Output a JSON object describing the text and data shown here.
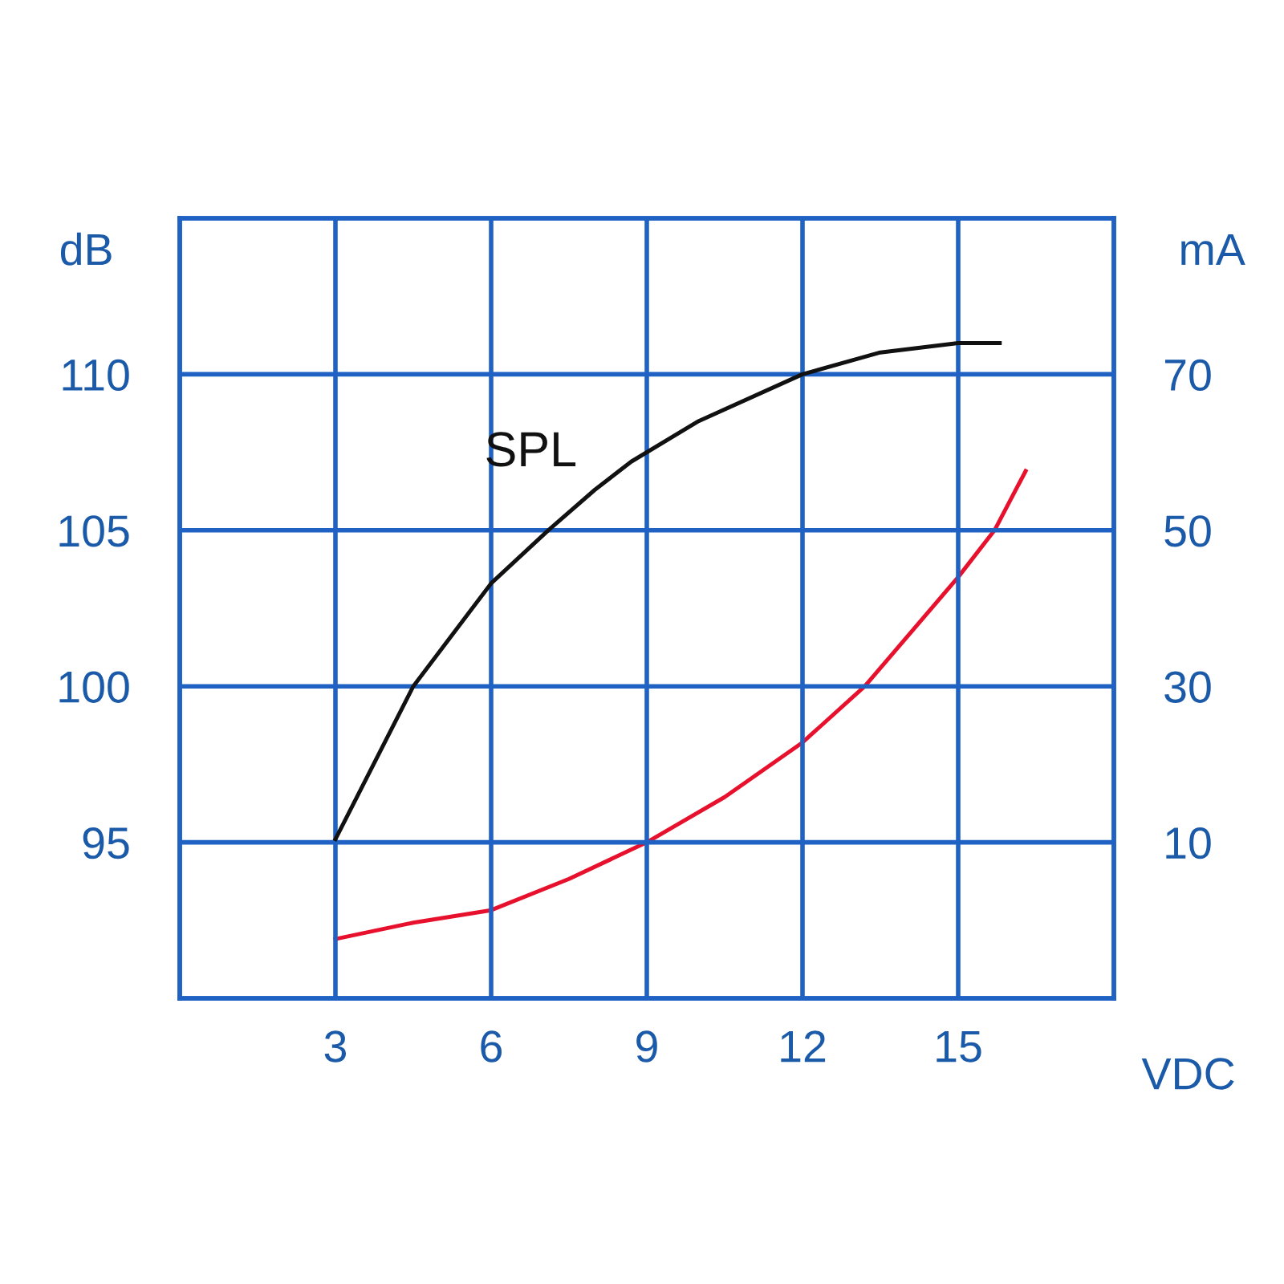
{
  "chart_data": {
    "type": "line",
    "xlabel": "VDC",
    "ylabel": "dB",
    "y2label": "mA",
    "xlim": [
      0,
      18
    ],
    "xticks": [
      3,
      6,
      9,
      12,
      15
    ],
    "ylim": [
      90,
      115
    ],
    "yticks": [
      95,
      100,
      105,
      110
    ],
    "y2lim": [
      -10,
      90
    ],
    "y2ticks": [
      10,
      30,
      50,
      70
    ],
    "grid": true,
    "marker": "none",
    "line_style": "solid",
    "series": [
      {
        "name": "SPL",
        "color": "#111111",
        "x": [
          3,
          4.5,
          6,
          7.1,
          8.0,
          8.7,
          10,
          12,
          13.5,
          15,
          15.8
        ],
        "values": [
          95.1,
          100,
          103.3,
          105,
          106.3,
          107.2,
          108.5,
          110,
          110.7,
          111.0,
          111.0
        ]
      },
      {
        "color": "#e8112d",
        "axis": "y2",
        "x": [
          3,
          4.5,
          6,
          7.5,
          9,
          10.5,
          12,
          13.2,
          15,
          15.7,
          16.3
        ],
        "values": [
          -2.4,
          -0.3,
          1.3,
          5.3,
          10,
          15.8,
          22.8,
          30,
          44,
          50,
          57.6
        ]
      }
    ]
  }
}
